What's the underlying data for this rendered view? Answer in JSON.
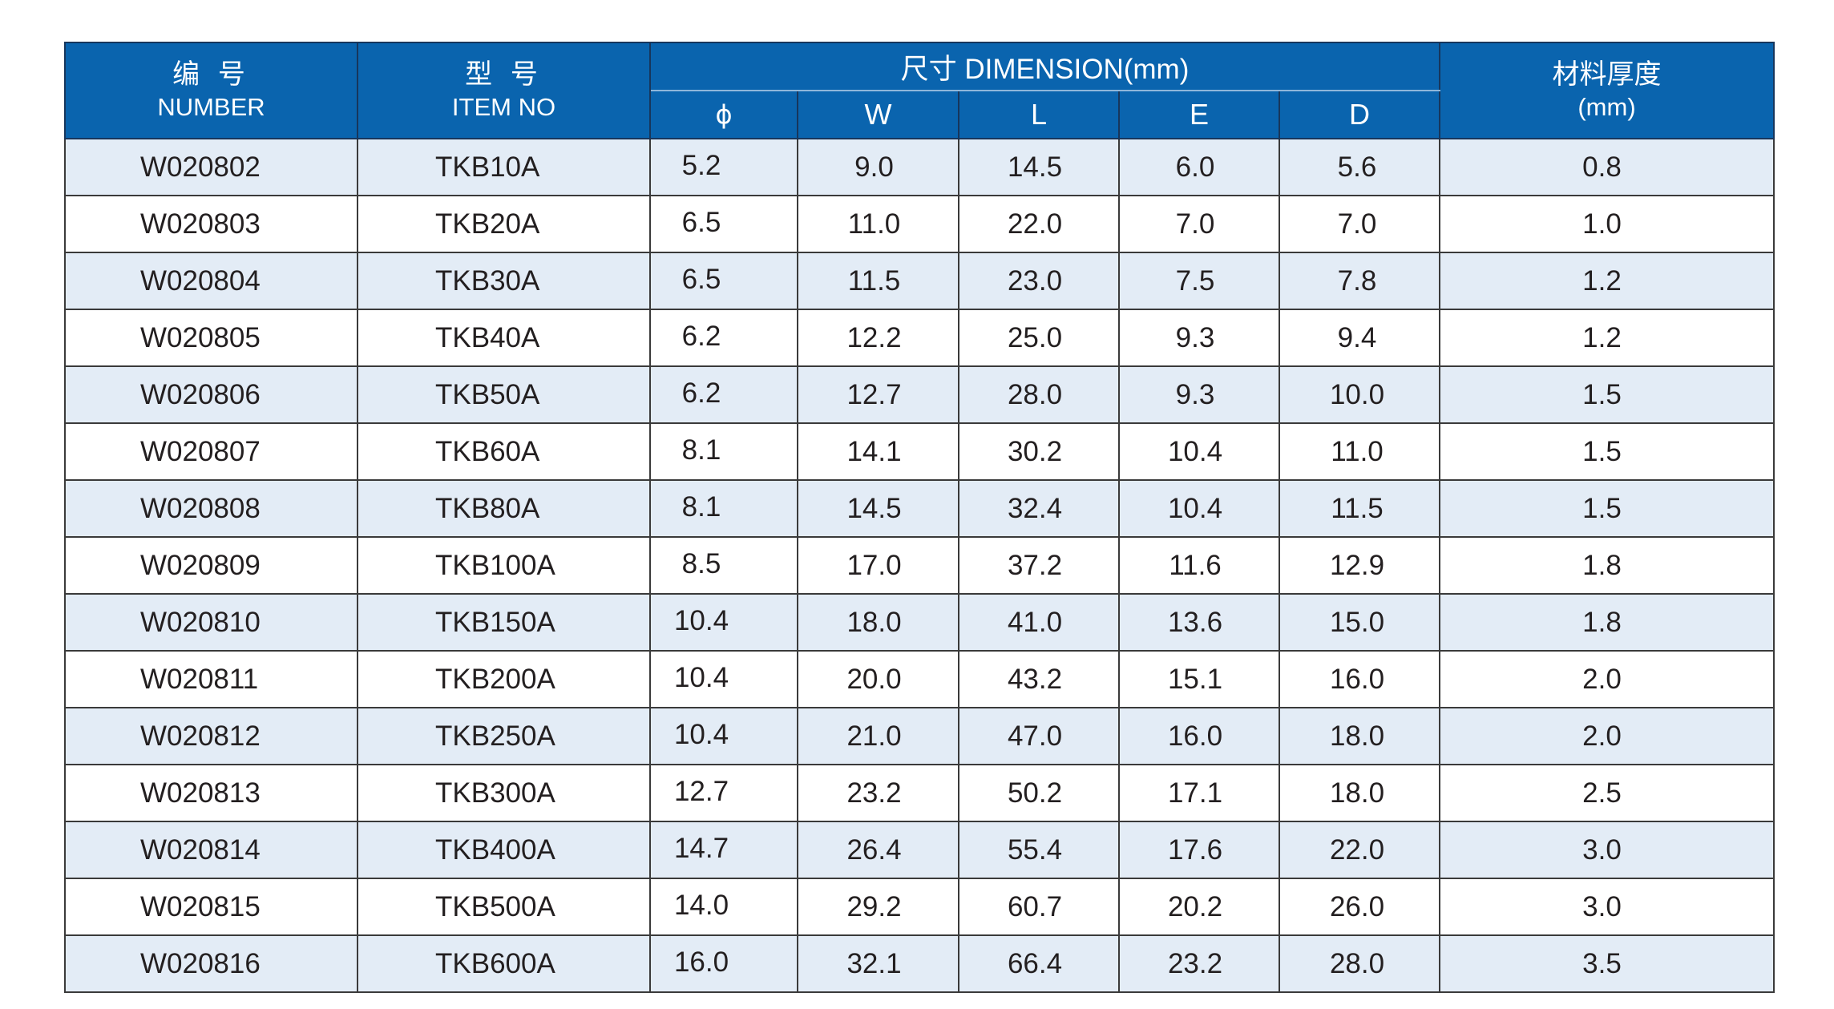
{
  "header": {
    "number_cn": "编 号",
    "number_en": "NUMBER",
    "item_cn": "型 号",
    "item_en": "ITEM NO",
    "dimension_cn": "尺寸",
    "dimension_en": "DIMENSION(mm)",
    "thickness_cn": "材料厚度",
    "thickness_en": "(mm)",
    "sub": {
      "phi": "ϕ",
      "w": "W",
      "l": "L",
      "e": "E",
      "d": "D"
    }
  },
  "rows": [
    {
      "number": "W020802",
      "item": "TKB10A",
      "phi": "5.2",
      "w": "9.0",
      "l": "14.5",
      "e": "6.0",
      "d": "5.6",
      "t": "0.8"
    },
    {
      "number": "W020803",
      "item": "TKB20A",
      "phi": "6.5",
      "w": "11.0",
      "l": "22.0",
      "e": "7.0",
      "d": "7.0",
      "t": "1.0"
    },
    {
      "number": "W020804",
      "item": "TKB30A",
      "phi": "6.5",
      "w": "11.5",
      "l": "23.0",
      "e": "7.5",
      "d": "7.8",
      "t": "1.2"
    },
    {
      "number": "W020805",
      "item": "TKB40A",
      "phi": "6.2",
      "w": "12.2",
      "l": "25.0",
      "e": "9.3",
      "d": "9.4",
      "t": "1.2"
    },
    {
      "number": "W020806",
      "item": "TKB50A",
      "phi": "6.2",
      "w": "12.7",
      "l": "28.0",
      "e": "9.3",
      "d": "10.0",
      "t": "1.5"
    },
    {
      "number": "W020807",
      "item": "TKB60A",
      "phi": "8.1",
      "w": "14.1",
      "l": "30.2",
      "e": "10.4",
      "d": "11.0",
      "t": "1.5"
    },
    {
      "number": "W020808",
      "item": "TKB80A",
      "phi": "8.1",
      "w": "14.5",
      "l": "32.4",
      "e": "10.4",
      "d": "11.5",
      "t": "1.5"
    },
    {
      "number": "W020809",
      "item": "TKB100A",
      "phi": "8.5",
      "w": "17.0",
      "l": "37.2",
      "e": "11.6",
      "d": "12.9",
      "t": "1.8"
    },
    {
      "number": "W020810",
      "item": "TKB150A",
      "phi": "10.4",
      "w": "18.0",
      "l": "41.0",
      "e": "13.6",
      "d": "15.0",
      "t": "1.8"
    },
    {
      "number": "W020811",
      "item": "TKB200A",
      "phi": "10.4",
      "w": "20.0",
      "l": "43.2",
      "e": "15.1",
      "d": "16.0",
      "t": "2.0"
    },
    {
      "number": "W020812",
      "item": "TKB250A",
      "phi": "10.4",
      "w": "21.0",
      "l": "47.0",
      "e": "16.0",
      "d": "18.0",
      "t": "2.0"
    },
    {
      "number": "W020813",
      "item": "TKB300A",
      "phi": "12.7",
      "w": "23.2",
      "l": "50.2",
      "e": "17.1",
      "d": "18.0",
      "t": "2.5"
    },
    {
      "number": "W020814",
      "item": "TKB400A",
      "phi": "14.7",
      "w": "26.4",
      "l": "55.4",
      "e": "17.6",
      "d": "22.0",
      "t": "3.0"
    },
    {
      "number": "W020815",
      "item": "TKB500A",
      "phi": "14.0",
      "w": "29.2",
      "l": "60.7",
      "e": "20.2",
      "d": "26.0",
      "t": "3.0"
    },
    {
      "number": "W020816",
      "item": "TKB600A",
      "phi": "16.0",
      "w": "32.1",
      "l": "66.4",
      "e": "23.2",
      "d": "28.0",
      "t": "3.5"
    }
  ],
  "colors": {
    "header_bg": "#0a64ae",
    "row_alt_bg": "#e3ecf6",
    "row_bg": "#ffffff",
    "text": "#231f20"
  }
}
